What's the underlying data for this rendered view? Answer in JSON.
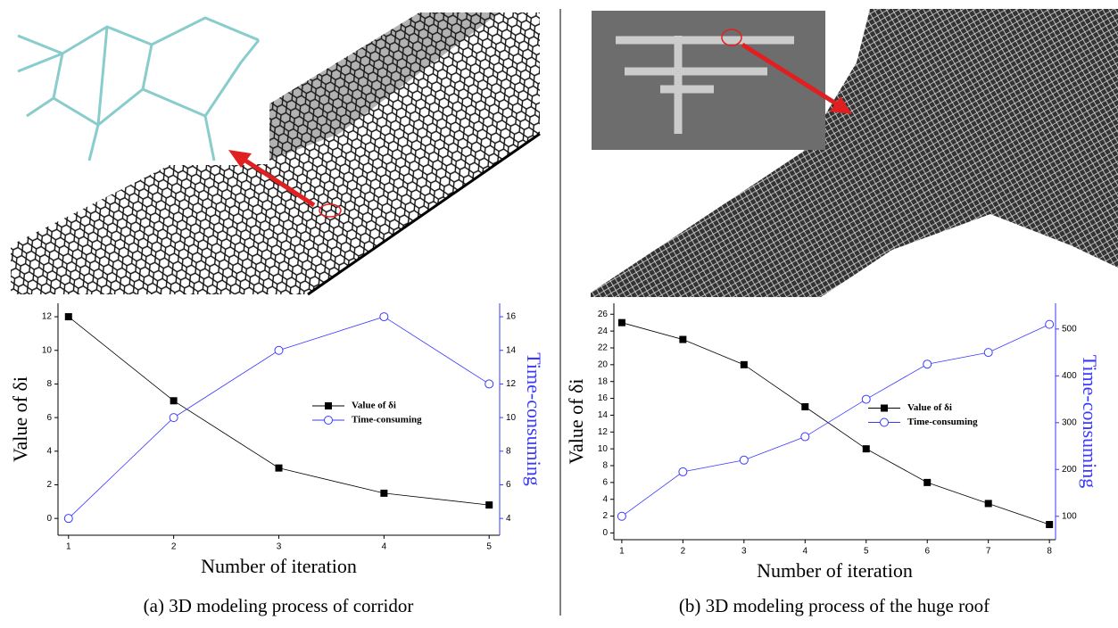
{
  "chart_data": [
    {
      "type": "line",
      "x_label": "Number of iteration",
      "y_label": "Value of δi",
      "y2_label": "Time-consuming",
      "caption": "(a) 3D modeling process of corridor",
      "x": [
        1,
        2,
        3,
        4,
        5
      ],
      "xlim": [
        0.9,
        5.1
      ],
      "xticks": [
        1,
        2,
        3,
        4,
        5
      ],
      "ylim": [
        -1,
        12.8
      ],
      "yticks": [
        0,
        2,
        4,
        6,
        8,
        10,
        12
      ],
      "y2lim": [
        3,
        16.8
      ],
      "y2ticks": [
        4,
        6,
        8,
        10,
        12,
        14,
        16
      ],
      "legend": "center-right",
      "series": [
        {
          "name": "Value of δi",
          "color": "#000000",
          "marker": "square",
          "values": [
            12,
            7,
            3,
            1.5,
            0.8
          ]
        },
        {
          "name": "Time-consuming",
          "color": "#3a3aff",
          "marker": "circle",
          "axis": "y2",
          "values": [
            4,
            10,
            14,
            16,
            12
          ]
        }
      ]
    },
    {
      "type": "line",
      "x_label": "Number of iteration",
      "y_label": "Value of δi",
      "y2_label": "Time-consuming",
      "caption": "(b) 3D modeling process of the huge roof",
      "x": [
        1,
        2,
        3,
        4,
        5,
        6,
        7,
        8
      ],
      "xlim": [
        0.87,
        8.1
      ],
      "xticks": [
        1,
        2,
        3,
        4,
        5,
        6,
        7,
        8
      ],
      "ylim": [
        -0.8,
        27.3
      ],
      "yticks": [
        0,
        2,
        4,
        6,
        8,
        10,
        12,
        14,
        16,
        18,
        20,
        22,
        24,
        26
      ],
      "y2lim": [
        50,
        555
      ],
      "y2ticks": [
        100,
        200,
        300,
        400,
        500
      ],
      "legend": "center-right",
      "series": [
        {
          "name": "Value of δi",
          "color": "#000000",
          "marker": "square",
          "values": [
            25,
            23,
            20,
            15,
            10,
            6,
            3.5,
            1
          ]
        },
        {
          "name": "Time-consuming",
          "color": "#3a3aff",
          "marker": "circle",
          "axis": "y2",
          "values": [
            100,
            195,
            220,
            270,
            350,
            425,
            450,
            510
          ]
        }
      ]
    }
  ]
}
